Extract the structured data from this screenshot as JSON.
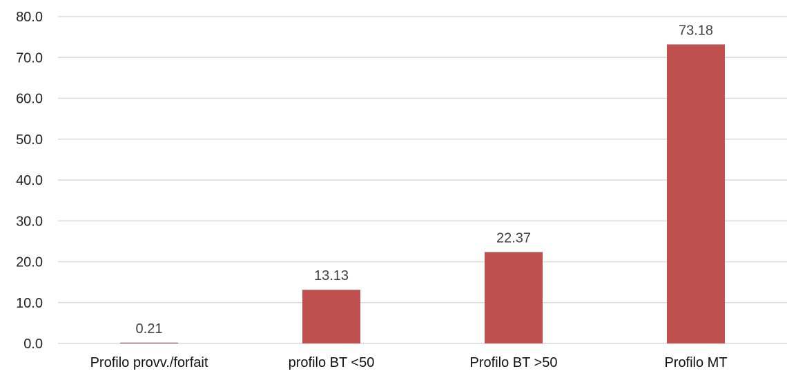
{
  "chart_data": {
    "type": "bar",
    "title": "",
    "xlabel": "",
    "ylabel": "",
    "categories": [
      "Profilo provv./forfait",
      "profilo BT <50",
      "Profilo BT >50",
      "Profilo MT"
    ],
    "values": [
      0.21,
      13.13,
      22.37,
      73.18
    ],
    "data_labels": [
      "0.21",
      "13.13",
      "22.37",
      "73.18"
    ],
    "ylim": [
      0,
      80
    ],
    "yticks": [
      0,
      10,
      20,
      30,
      40,
      50,
      60,
      70,
      80
    ],
    "ytick_labels": [
      "0.0",
      "10.0",
      "20.0",
      "30.0",
      "40.0",
      "50.0",
      "60.0",
      "70.0",
      "80.0"
    ],
    "grid": true,
    "legend": "none",
    "bar_color": "#c0504d",
    "grid_color": "#d9d9d9"
  }
}
